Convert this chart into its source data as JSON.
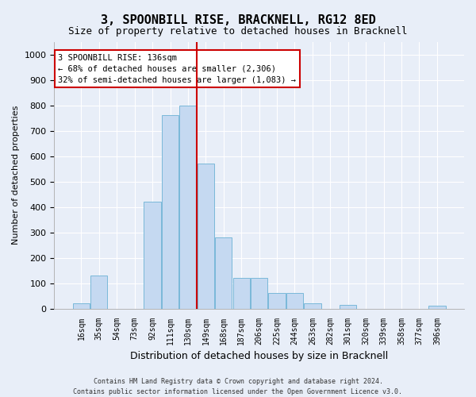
{
  "title": "3, SPOONBILL RISE, BRACKNELL, RG12 8ED",
  "subtitle": "Size of property relative to detached houses in Bracknell",
  "xlabel": "Distribution of detached houses by size in Bracknell",
  "ylabel": "Number of detached properties",
  "categories": [
    "16sqm",
    "35sqm",
    "54sqm",
    "73sqm",
    "92sqm",
    "111sqm",
    "130sqm",
    "149sqm",
    "168sqm",
    "187sqm",
    "206sqm",
    "225sqm",
    "244sqm",
    "263sqm",
    "282sqm",
    "301sqm",
    "320sqm",
    "339sqm",
    "358sqm",
    "377sqm",
    "396sqm"
  ],
  "values": [
    20,
    130,
    0,
    0,
    420,
    760,
    800,
    570,
    280,
    120,
    120,
    60,
    60,
    20,
    0,
    15,
    0,
    0,
    0,
    0,
    10
  ],
  "bar_color": "#c5d9f1",
  "bar_edge_color": "#7ab8d9",
  "ylim": [
    0,
    1050
  ],
  "yticks": [
    0,
    100,
    200,
    300,
    400,
    500,
    600,
    700,
    800,
    900,
    1000
  ],
  "marker_line_color": "#cc0000",
  "annotation_line1": "3 SPOONBILL RISE: 136sqm",
  "annotation_line2": "← 68% of detached houses are smaller (2,306)",
  "annotation_line3": "32% of semi-detached houses are larger (1,083) →",
  "annotation_box_color": "#ffffff",
  "annotation_box_edge_color": "#cc0000",
  "footer_line1": "Contains HM Land Registry data © Crown copyright and database right 2024.",
  "footer_line2": "Contains public sector information licensed under the Open Government Licence v3.0.",
  "background_color": "#e8eef8",
  "plot_bg_color": "#e8eef8",
  "grid_color": "#ffffff",
  "title_fontsize": 11,
  "subtitle_fontsize": 9
}
